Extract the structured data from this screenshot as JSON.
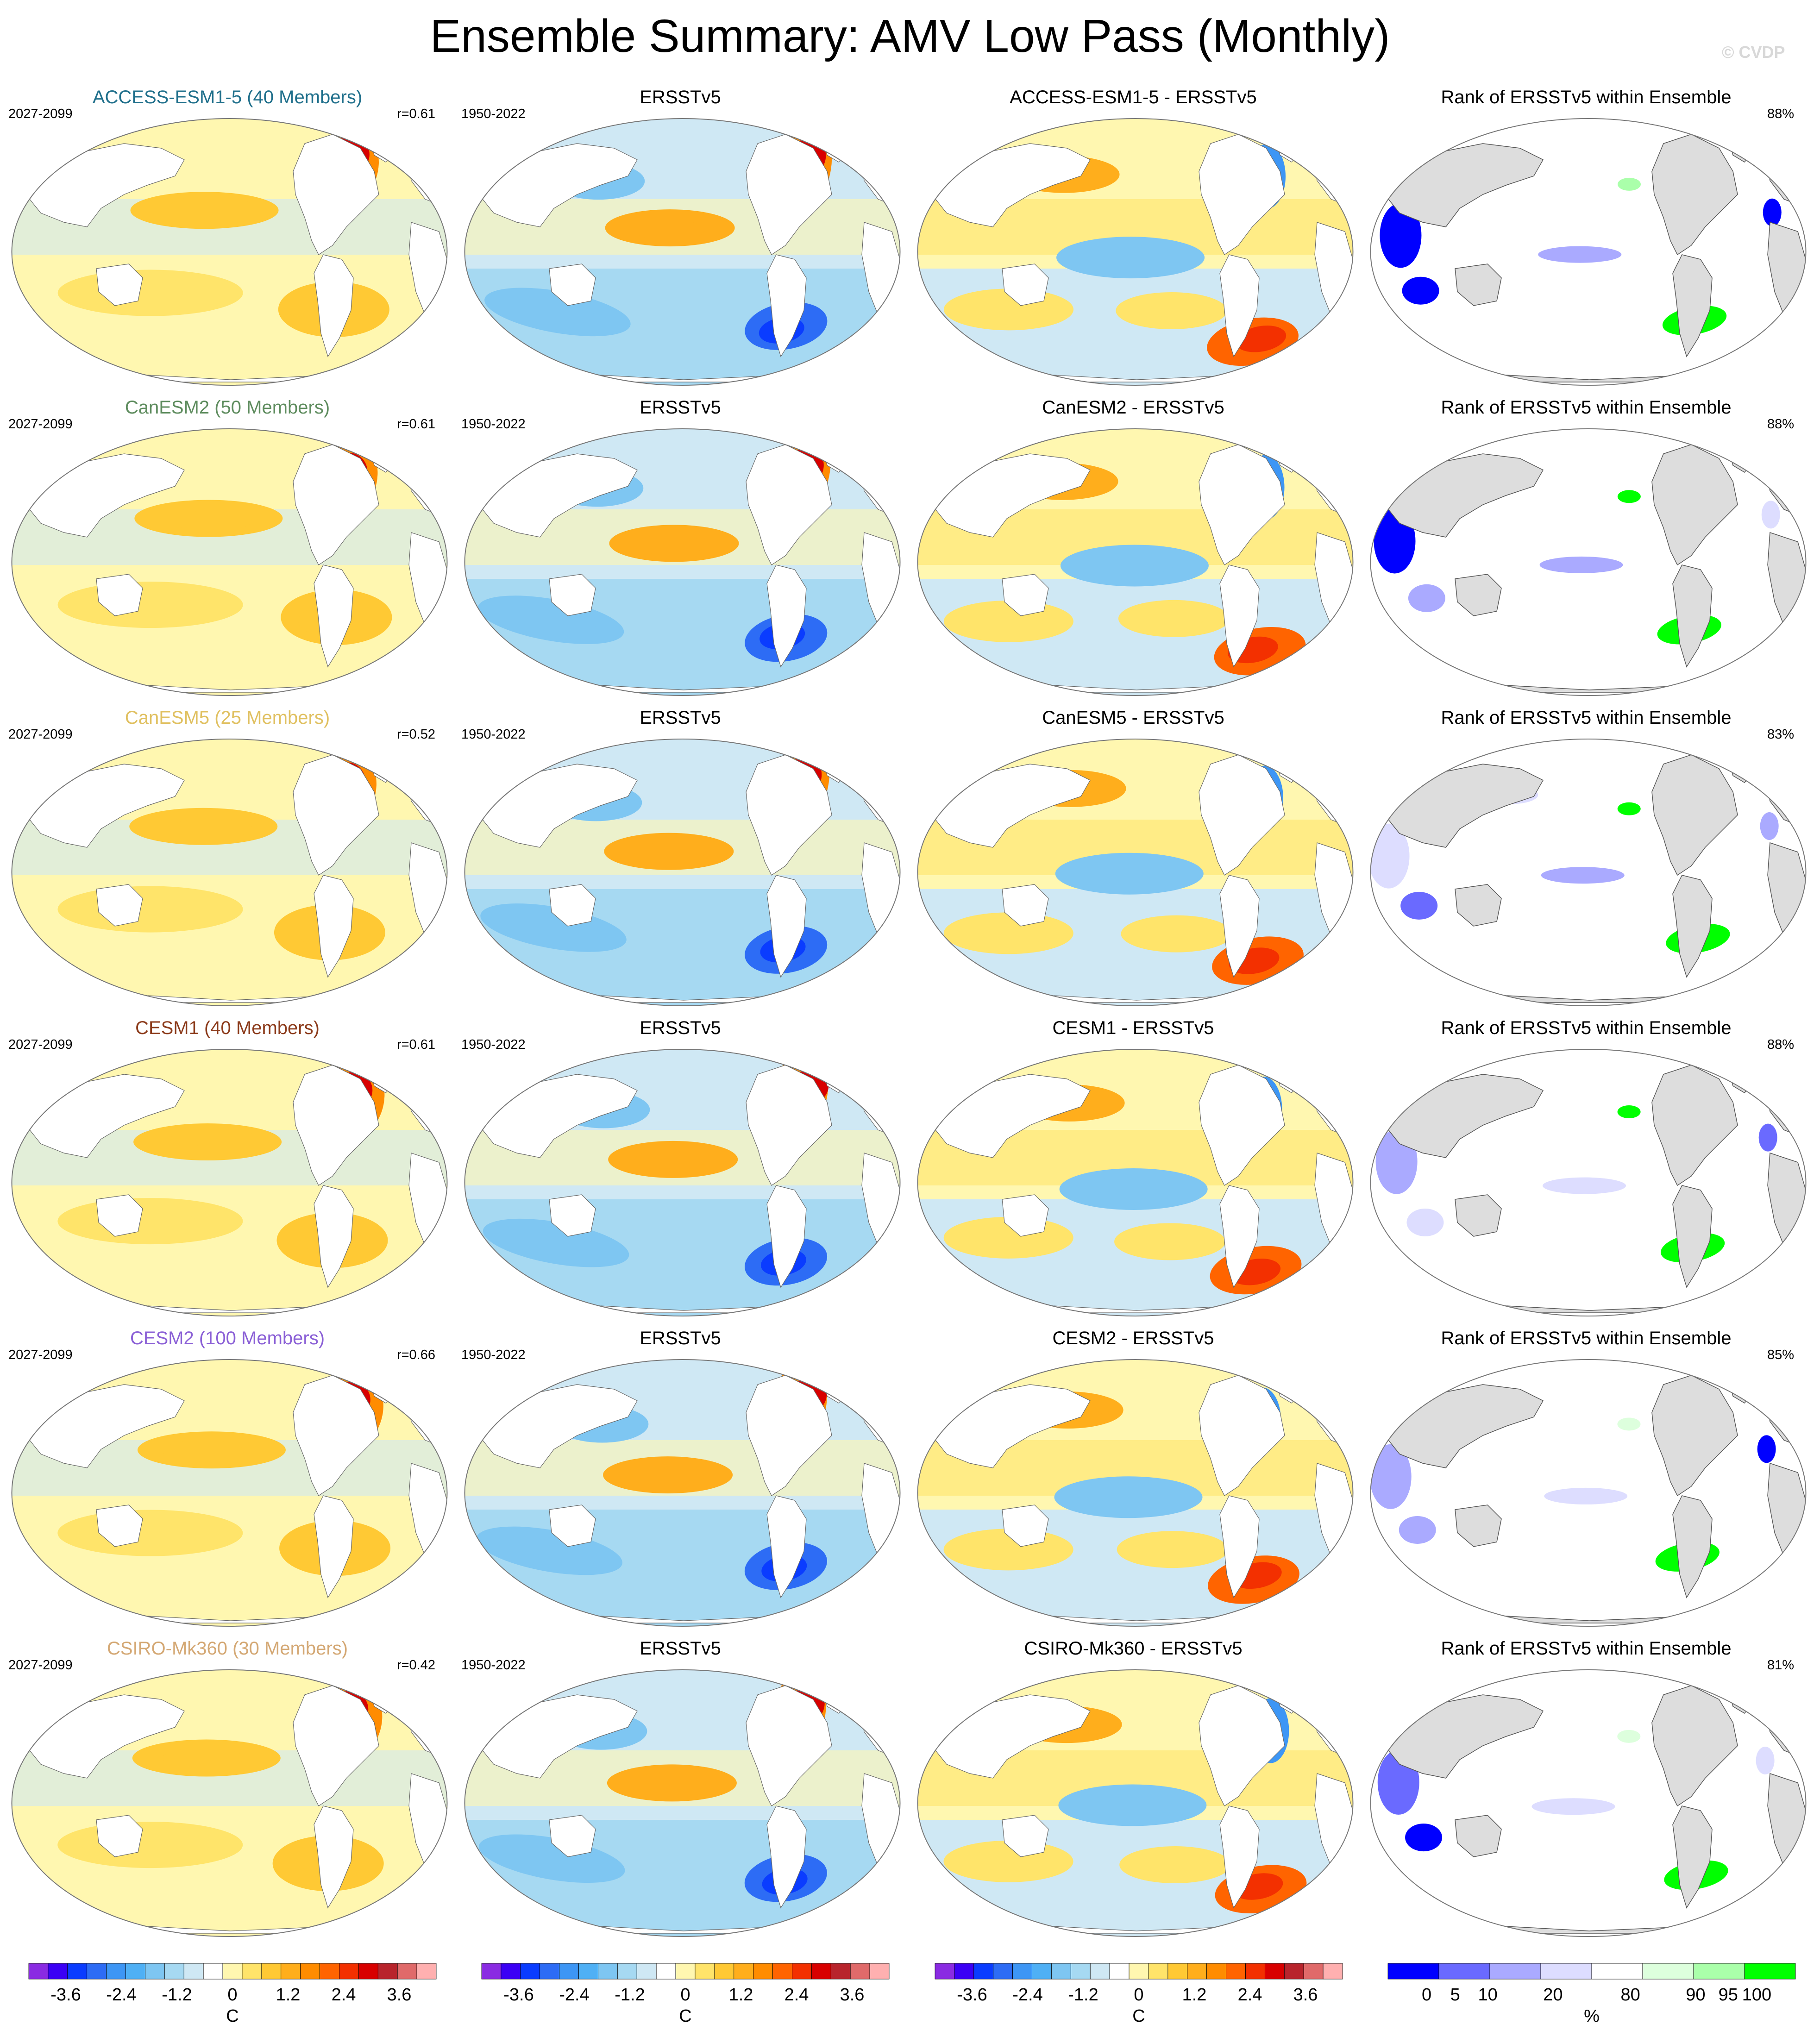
{
  "title": "Ensemble Summary: AMV Low Pass (Monthly)",
  "watermark": "© CVDP",
  "rows": [
    {
      "model": "ACCESS-ESM1-5",
      "model_title": "ACCESS-ESM1-5 (40 Members)",
      "model_color": "#1f6f8b",
      "model_period": "2027-2099",
      "r_text": "r=0.61",
      "obs_title": "ERSSTv5",
      "obs_period": "1950-2022",
      "diff_title": "ACCESS-ESM1-5 - ERSSTv5",
      "rank_title": "Rank of ERSSTv5 within Ensemble",
      "rank_pct": "88%"
    },
    {
      "model": "CanESM2",
      "model_title": "CanESM2 (50 Members)",
      "model_color": "#5e8c5e",
      "model_period": "2027-2099",
      "r_text": "r=0.61",
      "obs_title": "ERSSTv5",
      "obs_period": "1950-2022",
      "diff_title": "CanESM2 - ERSSTv5",
      "rank_title": "Rank of ERSSTv5 within Ensemble",
      "rank_pct": "88%"
    },
    {
      "model": "CanESM5",
      "model_title": "CanESM5 (25 Members)",
      "model_color": "#e0c060",
      "model_period": "2027-2099",
      "r_text": "r=0.52",
      "obs_title": "ERSSTv5",
      "obs_period": "1950-2022",
      "diff_title": "CanESM5 - ERSSTv5",
      "rank_title": "Rank of ERSSTv5 within Ensemble",
      "rank_pct": "83%"
    },
    {
      "model": "CESM1",
      "model_title": "CESM1 (40 Members)",
      "model_color": "#8b3a1a",
      "model_period": "2027-2099",
      "r_text": "r=0.61",
      "obs_title": "ERSSTv5",
      "obs_period": "1950-2022",
      "diff_title": "CESM1 - ERSSTv5",
      "rank_title": "Rank of ERSSTv5 within Ensemble",
      "rank_pct": "88%"
    },
    {
      "model": "CESM2",
      "model_title": "CESM2 (100 Members)",
      "model_color": "#8a5fd6",
      "model_period": "2027-2099",
      "r_text": "r=0.66",
      "obs_title": "ERSSTv5",
      "obs_period": "1950-2022",
      "diff_title": "CESM2 - ERSSTv5",
      "rank_title": "Rank of ERSSTv5 within Ensemble",
      "rank_pct": "85%"
    },
    {
      "model": "CSIRO-Mk360",
      "model_title": "CSIRO-Mk360 (30 Members)",
      "model_color": "#d4a874",
      "model_period": "2027-2099",
      "r_text": "r=0.42",
      "obs_title": "ERSSTv5",
      "obs_period": "1950-2022",
      "diff_title": "CSIRO-Mk360 - ERSSTv5",
      "rank_title": "Rank of ERSSTv5 within Ensemble",
      "rank_pct": "81%"
    }
  ],
  "colorbars": {
    "sst": {
      "ticks": [
        "-3.6",
        "-2.4",
        "-1.2",
        "0",
        "1.2",
        "2.4",
        "3.6"
      ],
      "tick_values": [
        -3.6,
        -2.4,
        -1.2,
        0,
        1.2,
        2.4,
        3.6
      ],
      "range": [
        -4.4,
        4.4
      ],
      "unit": "C",
      "colors": [
        "#8a2be2",
        "#3b00f5",
        "#0a3cff",
        "#2d6cf5",
        "#3d96f5",
        "#4fb0f5",
        "#7ec6f2",
        "#a6d9f2",
        "#cfe8f4",
        "#ffffff",
        "#fff7b0",
        "#ffe46a",
        "#ffc934",
        "#ffae1c",
        "#ff8c00",
        "#ff6400",
        "#f33000",
        "#d80000",
        "#b8242c",
        "#e06a6a",
        "#ffb0b0"
      ]
    },
    "rank": {
      "ticks": [
        "0",
        "5",
        "10",
        "20",
        "80",
        "90",
        "95",
        "100"
      ],
      "tick_values": [
        0,
        5,
        10,
        20,
        80,
        90,
        95,
        100
      ],
      "unit": "%",
      "colors": [
        "#0000ff",
        "#6a6aff",
        "#aaaaff",
        "#ddddff",
        "#ffffff",
        "#ddffdd",
        "#aaffaa",
        "#00ff00"
      ]
    }
  },
  "chart_data": {
    "type": "heatmap",
    "title": "Ensemble Summary: AMV Low Pass (Monthly)",
    "layout": "6 rows x 4 columns of global Robinson-projection maps",
    "columns": [
      "Ensemble-mean AMV pattern (model)",
      "Observed AMV pattern (ERSSTv5)",
      "Model minus observations",
      "Rank of ERSSTv5 within ensemble"
    ],
    "variable": "SST regression on AMV index (low pass)",
    "units": "C",
    "contour_levels": [
      -4.0,
      -3.6,
      -3.2,
      -2.8,
      -2.4,
      -2.0,
      -1.6,
      -1.2,
      -0.8,
      -0.4,
      0,
      0.4,
      0.8,
      1.2,
      1.6,
      2.0,
      2.4,
      2.8,
      3.2,
      3.6,
      4.0
    ],
    "rank_levels_percent": [
      0,
      5,
      10,
      20,
      80,
      90,
      95,
      100
    ],
    "pattern_correlation": {
      "ACCESS-ESM1-5": 0.61,
      "CanESM2": 0.61,
      "CanESM5": 0.52,
      "CESM1": 0.61,
      "CESM2": 0.66,
      "CSIRO-Mk360": 0.42
    },
    "rank_fraction_between_10_and_90_percent": {
      "ACCESS-ESM1-5": 88,
      "CanESM2": 88,
      "CanESM5": 83,
      "CESM1": 88,
      "CESM2": 85,
      "CSIRO-Mk360": 81
    },
    "ensemble_members": {
      "ACCESS-ESM1-5": 40,
      "CanESM2": 50,
      "CanESM5": 25,
      "CESM1": 40,
      "CESM2": 100,
      "CSIRO-Mk360": 30
    },
    "model_period": "2027-2099",
    "obs_period": "1950-2022"
  }
}
